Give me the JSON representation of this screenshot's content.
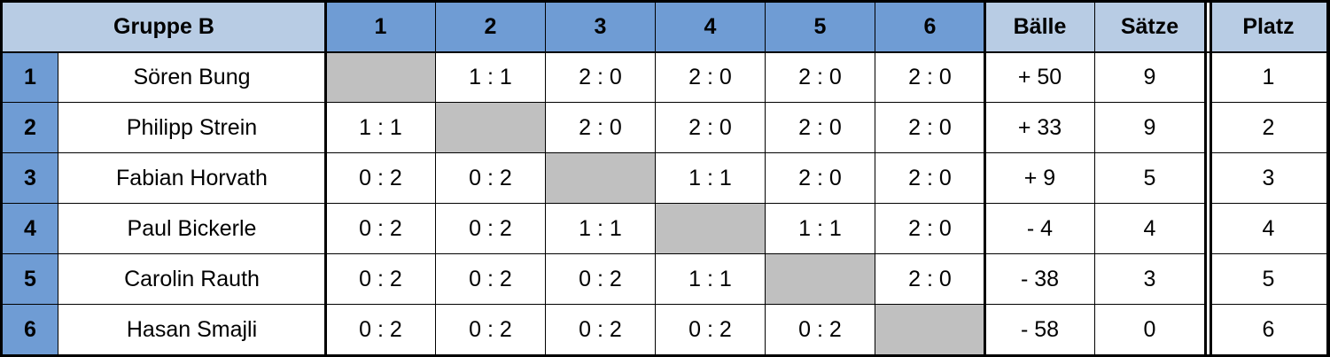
{
  "header": {
    "title": "Gruppe B",
    "columns": [
      1,
      2,
      3,
      4,
      5,
      6
    ],
    "balls": "Bälle",
    "sets": "Sätze",
    "rank": "Platz"
  },
  "rows": [
    {
      "number": 1,
      "name": "Sören Bung",
      "results": [
        null,
        "1 : 1",
        "2 : 0",
        "2 : 0",
        "2 : 0",
        "2 : 0"
      ],
      "balls": "+ 50",
      "sets": 9,
      "rank": 1
    },
    {
      "number": 2,
      "name": "Philipp Strein",
      "results": [
        "1 : 1",
        null,
        "2 : 0",
        "2 : 0",
        "2 : 0",
        "2 : 0"
      ],
      "balls": "+ 33",
      "sets": 9,
      "rank": 2
    },
    {
      "number": 3,
      "name": "Fabian Horvath",
      "results": [
        "0 : 2",
        "0 : 2",
        null,
        "1 : 1",
        "2 : 0",
        "2 : 0"
      ],
      "balls": "+ 9",
      "sets": 5,
      "rank": 3
    },
    {
      "number": 4,
      "name": "Paul Bickerle",
      "results": [
        "0 : 2",
        "0 : 2",
        "1 : 1",
        null,
        "1 : 1",
        "2 : 0"
      ],
      "balls": "- 4",
      "sets": 4,
      "rank": 4
    },
    {
      "number": 5,
      "name": "Carolin Rauth",
      "results": [
        "0 : 2",
        "0 : 2",
        "0 : 2",
        "1 : 1",
        null,
        "2 : 0"
      ],
      "balls": "- 38",
      "sets": 3,
      "rank": 5
    },
    {
      "number": 6,
      "name": "Hasan Smajli",
      "results": [
        "0 : 2",
        "0 : 2",
        "0 : 2",
        "0 : 2",
        "0 : 2",
        null
      ],
      "balls": "- 58",
      "sets": 0,
      "rank": 6
    }
  ]
}
